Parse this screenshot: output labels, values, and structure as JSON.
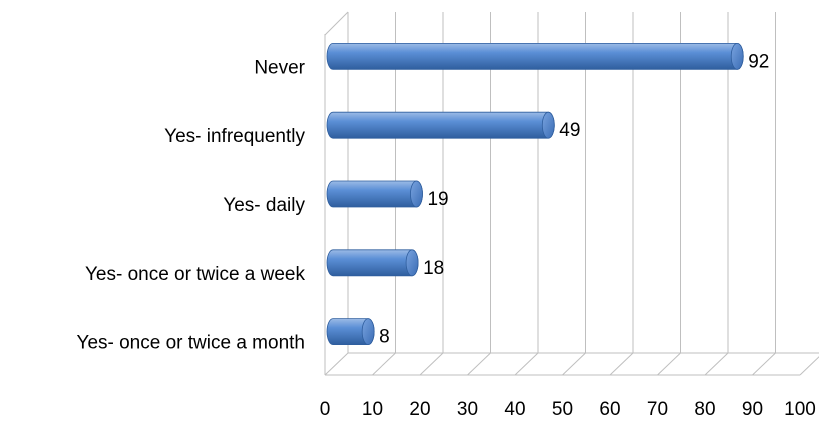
{
  "chart_data": {
    "type": "bar",
    "orientation": "horizontal",
    "categories": [
      "Never",
      "Yes- infrequently",
      "Yes- daily",
      "Yes- once or twice a week",
      "Yes- once or twice a month"
    ],
    "values": [
      92,
      49,
      19,
      18,
      8
    ],
    "color": "#4f81bd",
    "xlim": [
      0,
      100
    ],
    "xticks": [
      0,
      10,
      20,
      30,
      40,
      50,
      60,
      70,
      80,
      90,
      100
    ],
    "grid": true
  }
}
